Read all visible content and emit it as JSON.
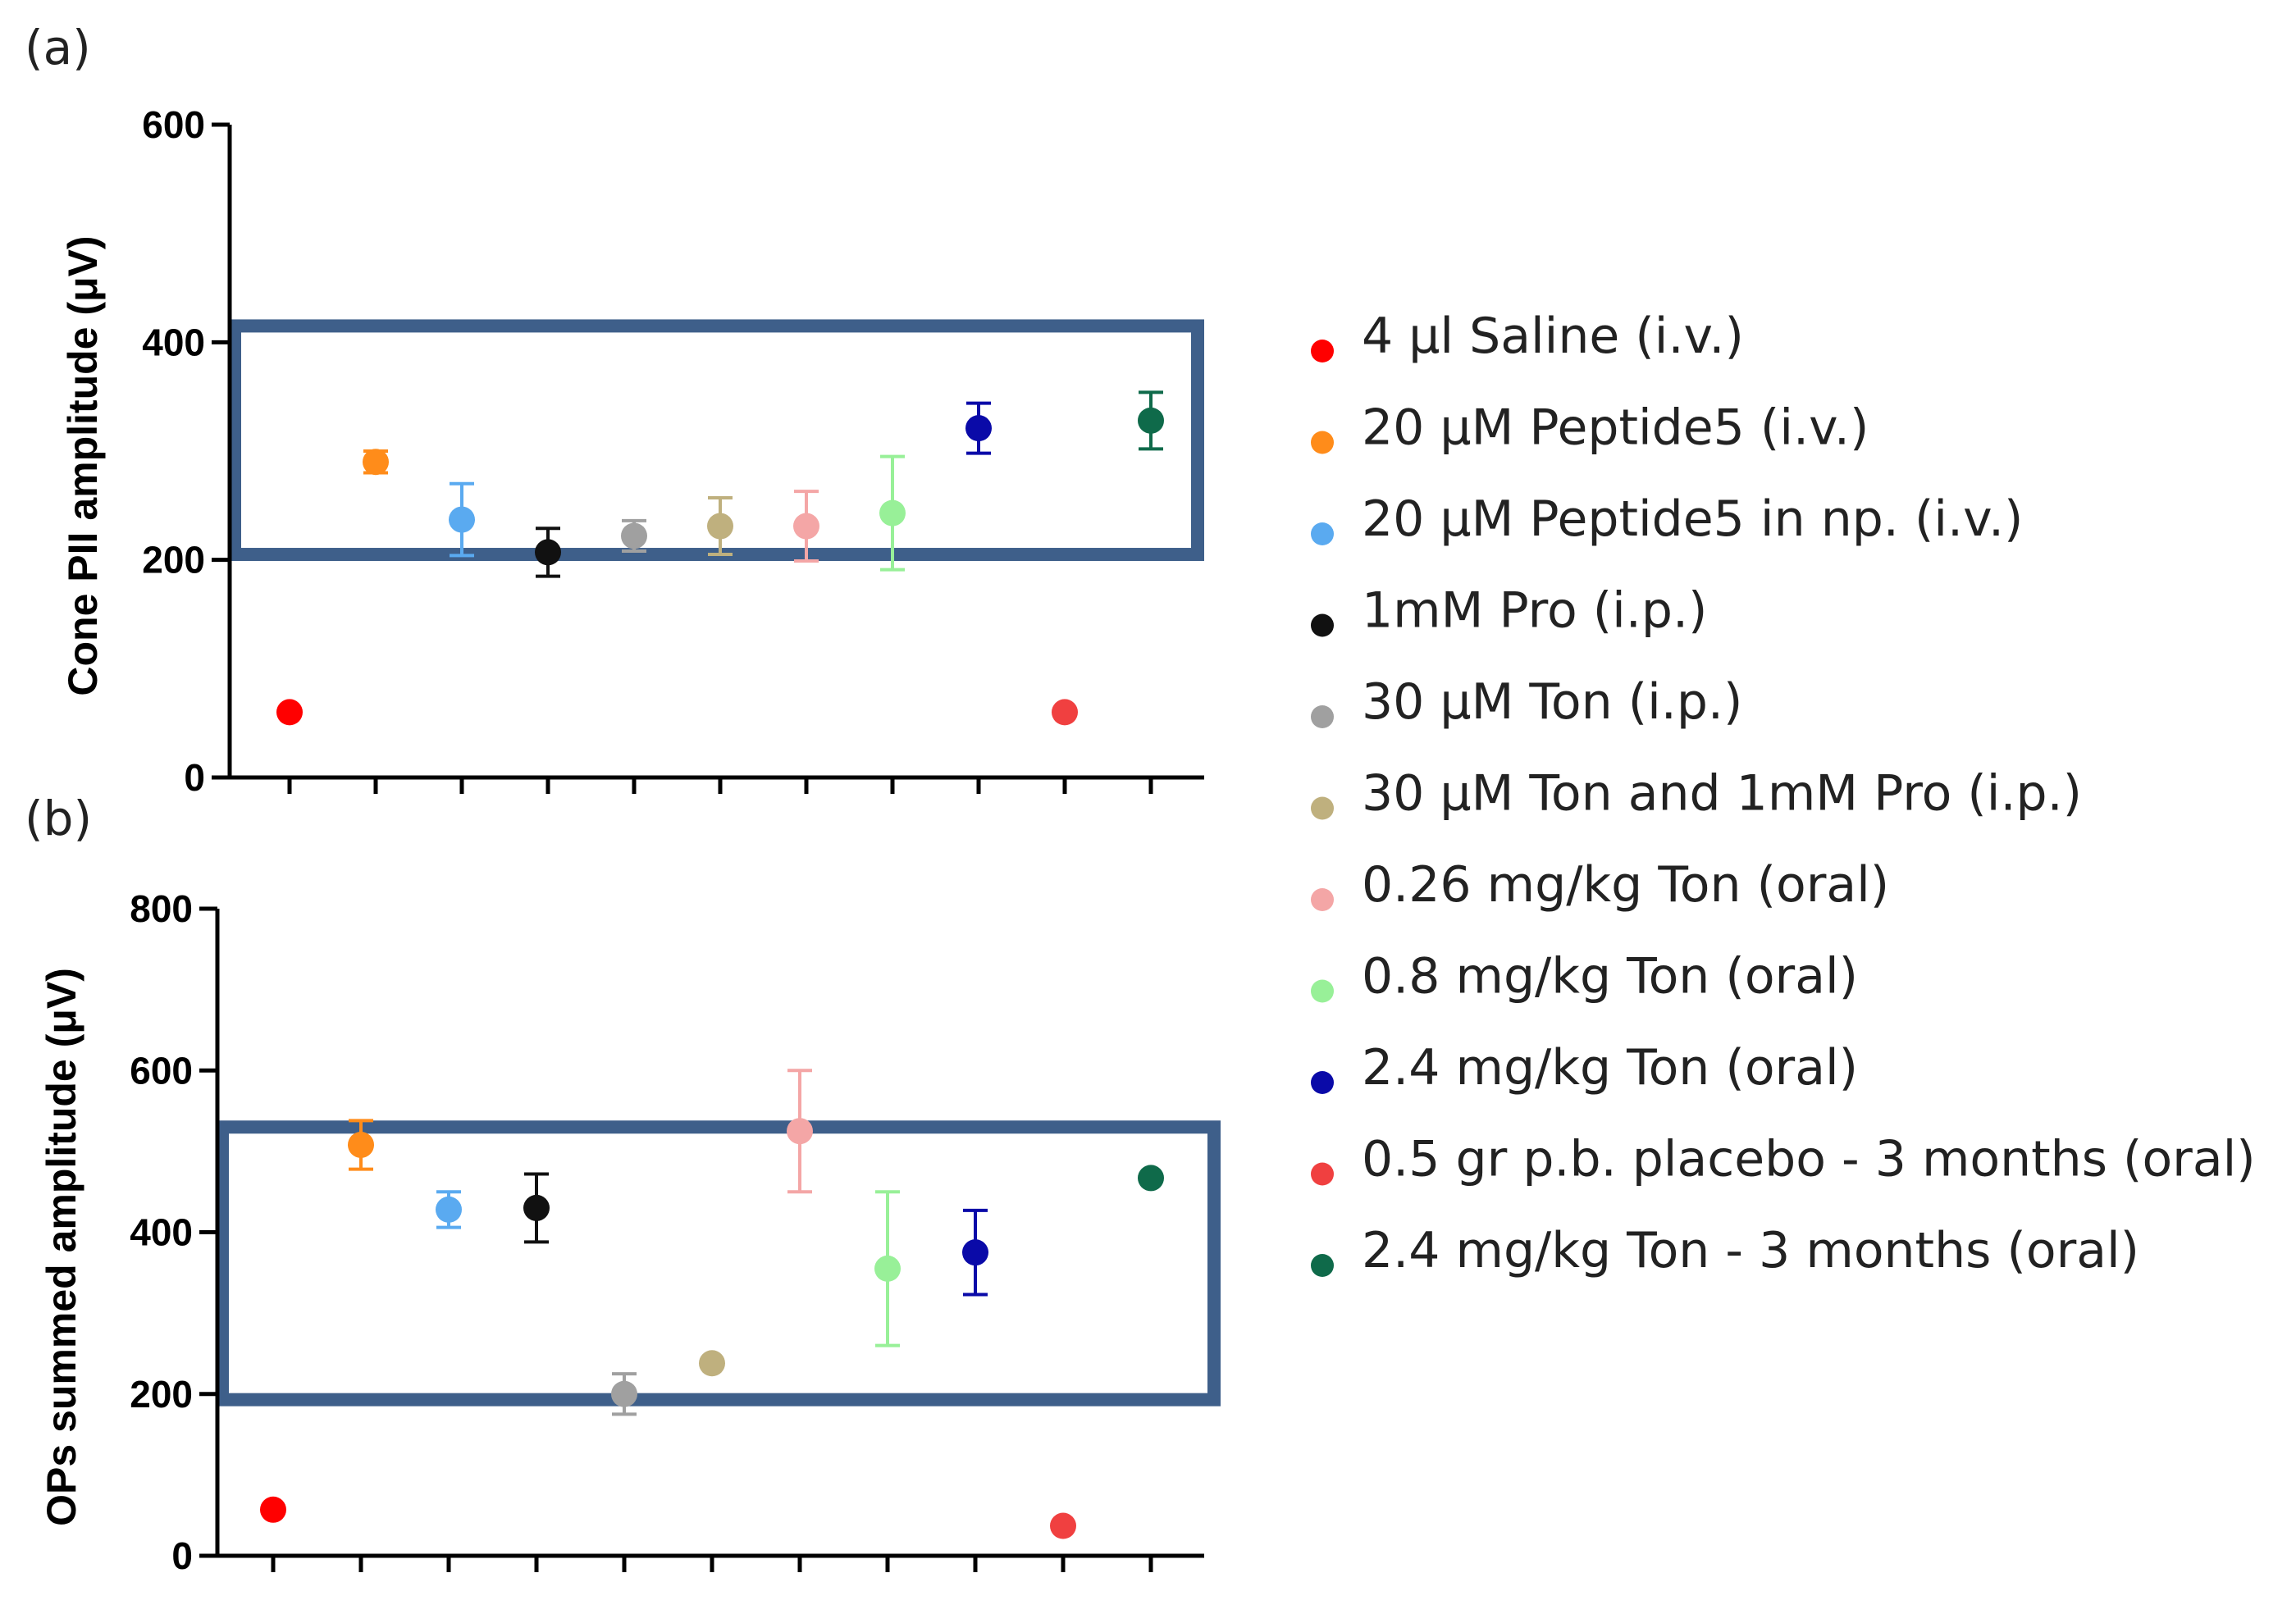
{
  "chart_data": [
    {
      "panel": "(a)",
      "type": "scatter",
      "ylabel": "Cone PII amplitude (μV)",
      "ylim": [
        0,
        600
      ],
      "yticks": [
        0,
        200,
        400,
        600
      ],
      "highlight_range": [
        205,
        415
      ],
      "points": [
        {
          "group": 0,
          "mean": 60,
          "err": 0
        },
        {
          "group": 1,
          "mean": 290,
          "err": 10
        },
        {
          "group": 2,
          "mean": 237,
          "err": 33
        },
        {
          "group": 3,
          "mean": 207,
          "err": 22
        },
        {
          "group": 4,
          "mean": 222,
          "err": 14
        },
        {
          "group": 5,
          "mean": 231,
          "err": 26
        },
        {
          "group": 6,
          "mean": 231,
          "err": 32
        },
        {
          "group": 7,
          "mean": 243,
          "err": 52
        },
        {
          "group": 8,
          "mean": 321,
          "err": 23
        },
        {
          "group": 9,
          "mean": 60,
          "err": 0
        },
        {
          "group": 10,
          "mean": 328,
          "err": 26
        }
      ]
    },
    {
      "panel": "(b)",
      "type": "scatter",
      "ylabel": "OPs summed amplitude (μV)",
      "ylim": [
        0,
        800
      ],
      "yticks": [
        0,
        200,
        400,
        600,
        800
      ],
      "highlight_range": [
        193,
        530
      ],
      "points": [
        {
          "group": 0,
          "mean": 57,
          "err": 0
        },
        {
          "group": 1,
          "mean": 508,
          "err": 30
        },
        {
          "group": 2,
          "mean": 428,
          "err": 22
        },
        {
          "group": 3,
          "mean": 430,
          "err": 42
        },
        {
          "group": 4,
          "mean": 200,
          "err": 25
        },
        {
          "group": 5,
          "mean": 238,
          "err": 0
        },
        {
          "group": 6,
          "mean": 525,
          "err": 75
        },
        {
          "group": 7,
          "mean": 355,
          "err": 95
        },
        {
          "group": 8,
          "mean": 375,
          "err": 52
        },
        {
          "group": 9,
          "mean": 37,
          "err": 0
        },
        {
          "group": 10,
          "mean": 467,
          "err": 0
        }
      ]
    }
  ],
  "legend": [
    {
      "label": "4 µl Saline (i.v.)",
      "color": "#ff0000"
    },
    {
      "label": "20 µM Peptide5 (i.v.)",
      "color": "#ff8c1a"
    },
    {
      "label": "20 µM Peptide5 in np. (i.v.)",
      "color": "#5aaaf0"
    },
    {
      "label": "1mM Pro (i.p.)",
      "color": "#111111"
    },
    {
      "label": "30 µM Ton (i.p.)",
      "color": "#a0a0a0"
    },
    {
      "label": "30 µM Ton and 1mM Pro (i.p.)",
      "color": "#bfb07e"
    },
    {
      "label": "0.26 mg/kg Ton (oral)",
      "color": "#f4a6a6"
    },
    {
      "label": "0.8 mg/kg Ton (oral)",
      "color": "#98f098"
    },
    {
      "label": "2.4 mg/kg Ton (oral)",
      "color": "#0a0aa8"
    },
    {
      "label": "0.5 gr p.b. placebo - 3 months  (oral)",
      "color": "#f04040"
    },
    {
      "label": "2.4 mg/kg Ton - 3 months (oral)",
      "color": "#0f6a4a"
    }
  ],
  "colors": {
    "axis": "#000000",
    "highlight_box": "#3e5f8a"
  }
}
